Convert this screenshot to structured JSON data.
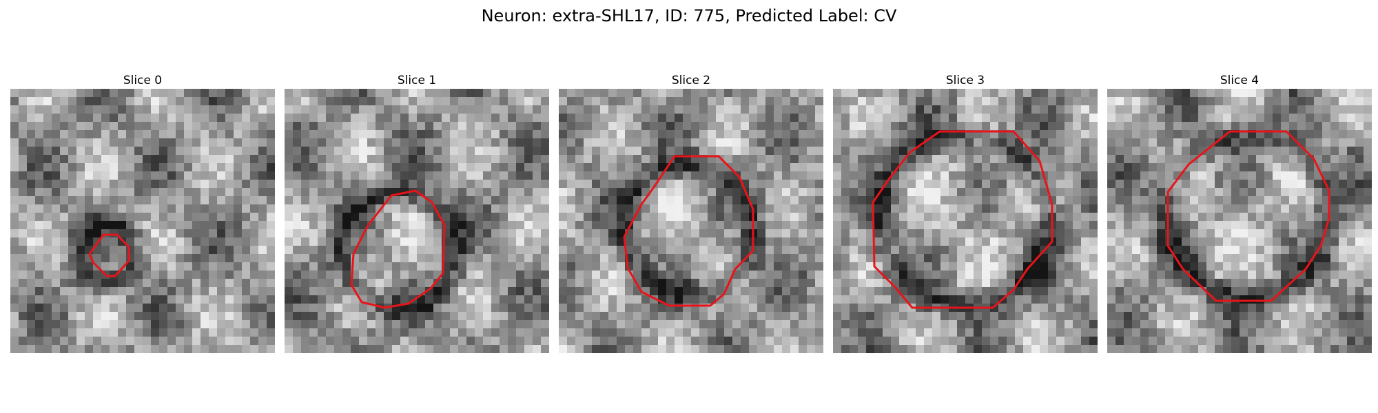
{
  "figure": {
    "title": "Neuron: extra-SHL17, ID: 775, Predicted Label: CV",
    "contour_color": "#e8141a"
  },
  "panels": [
    {
      "title": "Slice 0",
      "seed": 11,
      "variant": "small"
    },
    {
      "title": "Slice 1",
      "seed": 23,
      "variant": "medium"
    },
    {
      "title": "Slice 2",
      "seed": 37,
      "variant": "medium"
    },
    {
      "title": "Slice 3",
      "seed": 41,
      "variant": "large"
    },
    {
      "title": "Slice 4",
      "seed": 53,
      "variant": "large"
    }
  ]
}
